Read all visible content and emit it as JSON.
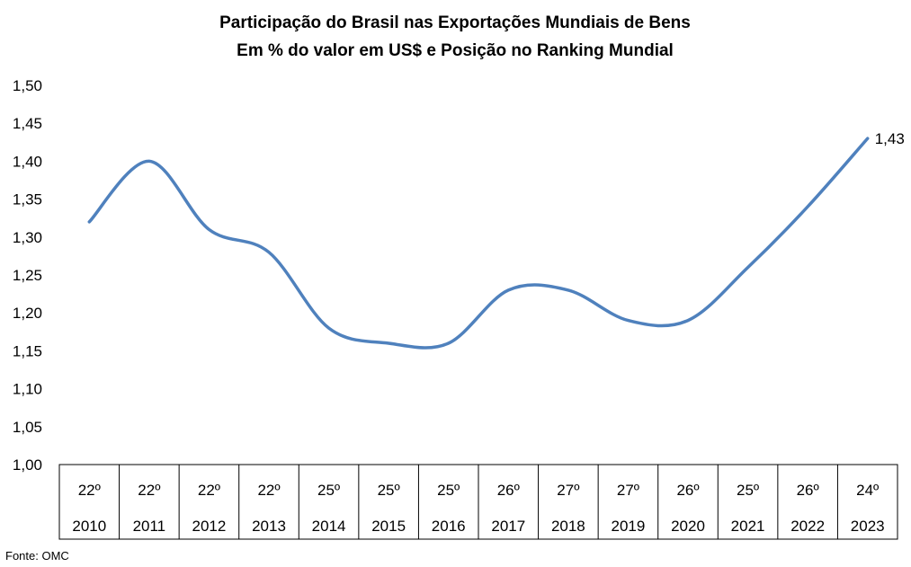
{
  "chart_data": {
    "type": "line",
    "title": "Participação do Brasil nas Exportações Mundiais de Bens",
    "subtitle": "Em % do valor em US$ e Posição no Ranking Mundial",
    "categories": [
      "2010",
      "2011",
      "2012",
      "2013",
      "2014",
      "2015",
      "2016",
      "2017",
      "2018",
      "2019",
      "2020",
      "2021",
      "2022",
      "2023"
    ],
    "rankings": [
      "22º",
      "22º",
      "22º",
      "22º",
      "25º",
      "25º",
      "25º",
      "26º",
      "27º",
      "27º",
      "26º",
      "25º",
      "26º",
      "24º"
    ],
    "series": [
      {
        "values": [
          1.32,
          1.4,
          1.31,
          1.28,
          1.18,
          1.16,
          1.16,
          1.23,
          1.23,
          1.19,
          1.19,
          1.26,
          1.34,
          1.43
        ],
        "color": "#4f81bd"
      }
    ],
    "data_labels": [
      {
        "index": 13,
        "text": "1,43"
      }
    ],
    "yticks": [
      "1,00",
      "1,05",
      "1,10",
      "1,15",
      "1,20",
      "1,25",
      "1,30",
      "1,35",
      "1,40",
      "1,45",
      "1,50"
    ],
    "ylim": [
      1.0,
      1.5
    ],
    "grid": false,
    "legend": "none"
  },
  "source": "Fonte: OMC"
}
